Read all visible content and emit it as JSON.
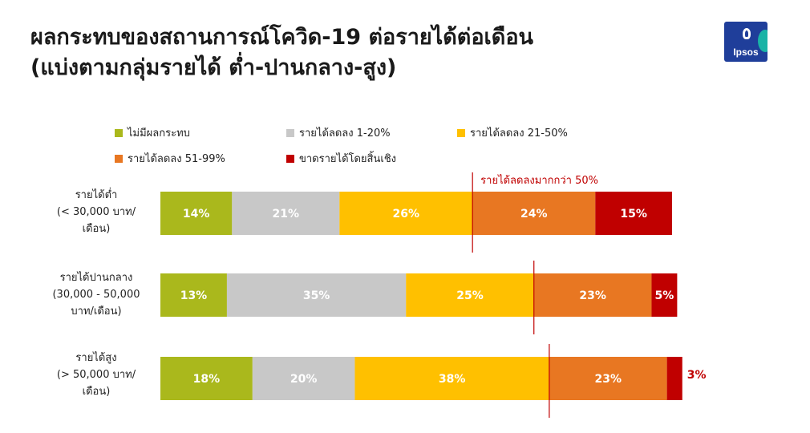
{
  "title": {
    "line1": "ผลกระทบของสถานการณ์โควิด-19 ต่อรายได้ต่อเดือน",
    "line2": "(แบ่งตามกลุ่มรายได้ ต่ำ-ปานกลาง-สูง)"
  },
  "logo": {
    "text": "Ipsos",
    "colors": {
      "primary": "#1f3e9a",
      "accent": "#19b3a6"
    }
  },
  "chart_data": {
    "type": "bar",
    "orientation": "horizontal-stacked-100",
    "title": "ผลกระทบของสถานการณ์โควิด-19 ต่อรายได้ต่อเดือน (แบ่งตามกลุ่มรายได้ ต่ำ-ปานกลาง-สูง)",
    "categories": [
      {
        "line1": "รายได้ต่ำ",
        "line2": "(< 30,000 บาท/",
        "line3": "เดือน)"
      },
      {
        "line1": "รายได้ปานกลาง",
        "line2": "(30,000 - 50,000",
        "line3": "บาท/เดือน)"
      },
      {
        "line1": "รายได้สูง",
        "line2": "(> 50,000 บาท/",
        "line3": "เดือน)"
      }
    ],
    "series": [
      {
        "name": "ไม่มีผลกระทบ",
        "color": "#aab81c",
        "values": [
          14,
          13,
          18
        ],
        "labels": [
          "14%",
          "13%",
          "18%"
        ]
      },
      {
        "name": "รายได้ลดลง 1-20%",
        "color": "#c8c8c8",
        "values": [
          21,
          35,
          20
        ],
        "labels": [
          "21%",
          "35%",
          "20%"
        ]
      },
      {
        "name": "รายได้ลดลง 21-50%",
        "color": "#ffc000",
        "values": [
          26,
          25,
          38
        ],
        "labels": [
          "26%",
          "25%",
          "38%"
        ]
      },
      {
        "name": "รายได้ลดลง 51-99%",
        "color": "#e87722",
        "values": [
          24,
          23,
          23
        ],
        "labels": [
          "24%",
          "23%",
          "23%"
        ]
      },
      {
        "name": "ขาดรายได้โดยสิ้นเชิง",
        "color": "#c00000",
        "values": [
          15,
          5,
          3
        ],
        "labels": [
          "15%",
          "5%",
          "3%"
        ]
      }
    ],
    "annotation": {
      "text": "รายได้ลดลงมากกว่า 50%",
      "color": "#c00000"
    },
    "xlim": [
      0,
      100
    ],
    "legend": "top",
    "grid": false
  }
}
